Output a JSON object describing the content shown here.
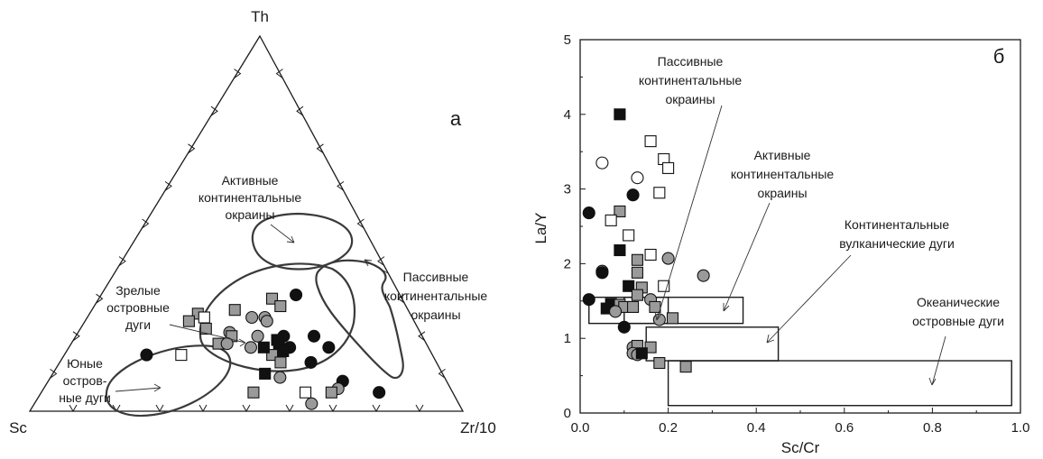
{
  "chart_data": [
    {
      "type": "scatter",
      "panel_label": "а",
      "projection": "ternary",
      "vertices": {
        "top": "Th",
        "left": "Sc",
        "right": "Zr/10"
      },
      "fields": [
        {
          "id": "active",
          "label_lines": [
            "Активные",
            "континентальные",
            "окраины"
          ]
        },
        {
          "id": "passive",
          "label_lines": [
            "Пассивные",
            "континентальные",
            "окраины"
          ]
        },
        {
          "id": "mature",
          "label_lines": [
            "Зрелые",
            "островные",
            "дуги"
          ]
        },
        {
          "id": "young",
          "label_lines": [
            "Юные",
            "остров-",
            "ные дуги"
          ]
        }
      ],
      "points": [
        {
          "th": 0.27,
          "zr10": 0.33,
          "m": "sq-gray"
        },
        {
          "th": 0.3,
          "zr10": 0.4,
          "m": "sq-gray"
        },
        {
          "th": 0.31,
          "zr10": 0.45,
          "m": "circ-black"
        },
        {
          "th": 0.28,
          "zr10": 0.43,
          "m": "sq-gray"
        },
        {
          "th": 0.26,
          "zr10": 0.25,
          "m": "sq-gray"
        },
        {
          "th": 0.24,
          "zr10": 0.24,
          "m": "sq-gray"
        },
        {
          "th": 0.25,
          "zr10": 0.27,
          "m": "sq-white"
        },
        {
          "th": 0.22,
          "zr10": 0.29,
          "m": "sq-gray"
        },
        {
          "th": 0.25,
          "zr10": 0.41,
          "m": "circ-gray"
        },
        {
          "th": 0.25,
          "zr10": 0.38,
          "m": "circ-gray"
        },
        {
          "th": 0.24,
          "zr10": 0.42,
          "m": "circ-gray"
        },
        {
          "th": 0.21,
          "zr10": 0.35,
          "m": "circ-gray"
        },
        {
          "th": 0.2,
          "zr10": 0.36,
          "m": "sq-gray"
        },
        {
          "th": 0.18,
          "zr10": 0.34,
          "m": "sq-gray"
        },
        {
          "th": 0.18,
          "zr10": 0.36,
          "m": "circ-gray"
        },
        {
          "th": 0.2,
          "zr10": 0.48,
          "m": "circ-black"
        },
        {
          "th": 0.19,
          "zr10": 0.47,
          "m": "sq-black"
        },
        {
          "th": 0.18,
          "zr10": 0.48,
          "m": "sq-black"
        },
        {
          "th": 0.17,
          "zr10": 0.51,
          "m": "circ-black"
        },
        {
          "th": 0.2,
          "zr10": 0.55,
          "m": "circ-black"
        },
        {
          "th": 0.17,
          "zr10": 0.6,
          "m": "circ-black"
        },
        {
          "th": 0.2,
          "zr10": 0.42,
          "m": "circ-gray"
        },
        {
          "th": 0.17,
          "zr10": 0.42,
          "m": "circ-gray"
        },
        {
          "th": 0.15,
          "zr10": 0.48,
          "m": "sq-gray"
        },
        {
          "th": 0.17,
          "zr10": 0.45,
          "m": "sq-black"
        },
        {
          "th": 0.16,
          "zr10": 0.5,
          "m": "sq-black"
        },
        {
          "th": 0.13,
          "zr10": 0.51,
          "m": "sq-gray"
        },
        {
          "th": 0.15,
          "zr10": 0.27,
          "m": "sq-white"
        },
        {
          "th": 0.15,
          "zr10": 0.19,
          "m": "circ-black"
        },
        {
          "th": 0.1,
          "zr10": 0.49,
          "m": "sq-black"
        },
        {
          "th": 0.09,
          "zr10": 0.53,
          "m": "circ-gray"
        },
        {
          "th": 0.13,
          "zr10": 0.58,
          "m": "circ-black"
        },
        {
          "th": 0.08,
          "zr10": 0.68,
          "m": "circ-black"
        },
        {
          "th": 0.06,
          "zr10": 0.68,
          "m": "circ-gray"
        },
        {
          "th": 0.05,
          "zr10": 0.67,
          "m": "sq-gray"
        },
        {
          "th": 0.05,
          "zr10": 0.61,
          "m": "sq-white"
        },
        {
          "th": 0.05,
          "zr10": 0.49,
          "m": "sq-gray"
        },
        {
          "th": 0.05,
          "zr10": 0.78,
          "m": "circ-black"
        },
        {
          "th": 0.02,
          "zr10": 0.64,
          "m": "circ-gray"
        }
      ]
    },
    {
      "type": "scatter",
      "panel_label": "б",
      "xlabel": "Sc/Cr",
      "ylabel": "La/Y",
      "xlim": [
        0,
        1.0
      ],
      "ylim": [
        0,
        5
      ],
      "xticks": [
        "0.0",
        "0.2",
        "0.4",
        "0.6",
        "0.8",
        "1.0"
      ],
      "yticks": [
        "0",
        "1",
        "2",
        "3",
        "4",
        "5"
      ],
      "fields": [
        {
          "id": "passive",
          "label_lines": [
            "Пассивные",
            "континентальные",
            "окраины"
          ],
          "x": [
            0.02,
            0.2
          ],
          "y": [
            1.2,
            1.55
          ]
        },
        {
          "id": "active",
          "label_lines": [
            "Активные",
            "континентальные",
            "окраины"
          ],
          "x": [
            0.1,
            0.37
          ],
          "y": [
            1.2,
            1.55
          ]
        },
        {
          "id": "cont_arcs",
          "label_lines": [
            "Континентальные",
            "вулканические дуги"
          ],
          "x": [
            0.15,
            0.45
          ],
          "y": [
            0.7,
            1.15
          ]
        },
        {
          "id": "ocean_arcs",
          "label_lines": [
            "Океанические",
            "островные дуги"
          ],
          "x": [
            0.2,
            0.98
          ],
          "y": [
            0.1,
            0.7
          ]
        }
      ],
      "points": [
        {
          "x": 0.09,
          "y": 4.0,
          "m": "sq-black"
        },
        {
          "x": 0.16,
          "y": 3.64,
          "m": "sq-white"
        },
        {
          "x": 0.19,
          "y": 3.4,
          "m": "sq-white"
        },
        {
          "x": 0.2,
          "y": 3.28,
          "m": "sq-white"
        },
        {
          "x": 0.05,
          "y": 3.35,
          "m": "circ-white"
        },
        {
          "x": 0.13,
          "y": 3.15,
          "m": "circ-white"
        },
        {
          "x": 0.18,
          "y": 2.95,
          "m": "sq-white"
        },
        {
          "x": 0.12,
          "y": 2.92,
          "m": "circ-black"
        },
        {
          "x": 0.02,
          "y": 2.68,
          "m": "circ-black"
        },
        {
          "x": 0.09,
          "y": 2.7,
          "m": "sq-gray"
        },
        {
          "x": 0.07,
          "y": 2.58,
          "m": "sq-white"
        },
        {
          "x": 0.11,
          "y": 2.38,
          "m": "sq-white"
        },
        {
          "x": 0.09,
          "y": 2.18,
          "m": "sq-black"
        },
        {
          "x": 0.16,
          "y": 2.12,
          "m": "sq-white"
        },
        {
          "x": 0.13,
          "y": 2.05,
          "m": "sq-gray"
        },
        {
          "x": 0.2,
          "y": 2.07,
          "m": "circ-gray"
        },
        {
          "x": 0.28,
          "y": 1.84,
          "m": "circ-gray"
        },
        {
          "x": 0.05,
          "y": 1.9,
          "m": "circ-gray"
        },
        {
          "x": 0.05,
          "y": 1.88,
          "m": "circ-black"
        },
        {
          "x": 0.13,
          "y": 1.88,
          "m": "sq-gray"
        },
        {
          "x": 0.11,
          "y": 1.7,
          "m": "sq-black"
        },
        {
          "x": 0.14,
          "y": 1.68,
          "m": "sq-gray"
        },
        {
          "x": 0.19,
          "y": 1.7,
          "m": "sq-white"
        },
        {
          "x": 0.13,
          "y": 1.58,
          "m": "sq-gray"
        },
        {
          "x": 0.16,
          "y": 1.52,
          "m": "circ-gray"
        },
        {
          "x": 0.02,
          "y": 1.52,
          "m": "circ-black"
        },
        {
          "x": 0.07,
          "y": 1.46,
          "m": "sq-black"
        },
        {
          "x": 0.09,
          "y": 1.45,
          "m": "sq-gray"
        },
        {
          "x": 0.06,
          "y": 1.4,
          "m": "sq-black"
        },
        {
          "x": 0.1,
          "y": 1.42,
          "m": "sq-gray"
        },
        {
          "x": 0.12,
          "y": 1.42,
          "m": "sq-gray"
        },
        {
          "x": 0.08,
          "y": 1.36,
          "m": "circ-gray"
        },
        {
          "x": 0.17,
          "y": 1.42,
          "m": "sq-gray"
        },
        {
          "x": 0.21,
          "y": 1.27,
          "m": "sq-gray"
        },
        {
          "x": 0.18,
          "y": 1.25,
          "m": "circ-gray"
        },
        {
          "x": 0.1,
          "y": 1.15,
          "m": "circ-black"
        },
        {
          "x": 0.12,
          "y": 0.88,
          "m": "circ-gray"
        },
        {
          "x": 0.13,
          "y": 0.9,
          "m": "sq-gray"
        },
        {
          "x": 0.16,
          "y": 0.88,
          "m": "sq-gray"
        },
        {
          "x": 0.12,
          "y": 0.8,
          "m": "circ-gray"
        },
        {
          "x": 0.13,
          "y": 0.78,
          "m": "circ-gray"
        },
        {
          "x": 0.14,
          "y": 0.8,
          "m": "sq-black"
        },
        {
          "x": 0.18,
          "y": 0.67,
          "m": "sq-gray"
        },
        {
          "x": 0.24,
          "y": 0.62,
          "m": "sq-gray"
        }
      ]
    }
  ]
}
